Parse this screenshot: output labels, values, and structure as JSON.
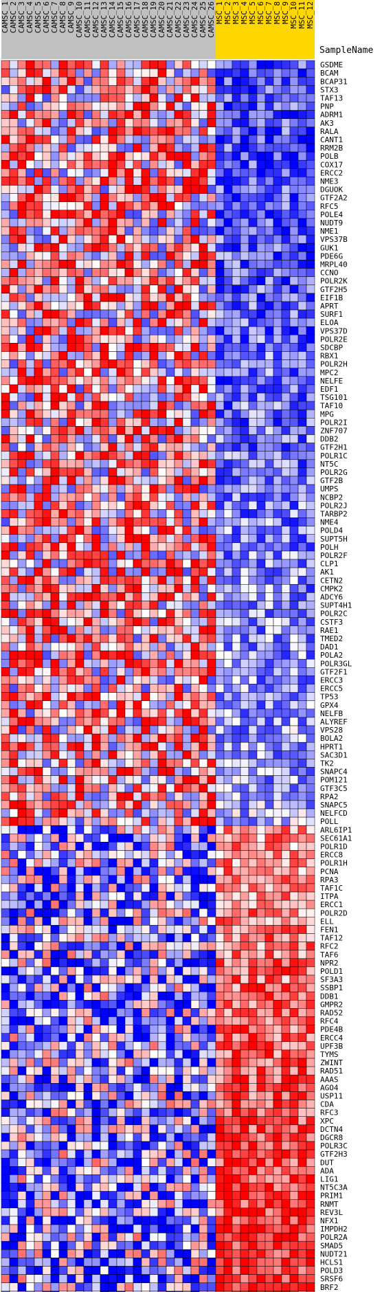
{
  "chart_data": {
    "type": "heatmap",
    "title": "",
    "row_header": "SampleName",
    "column_groups": [
      {
        "name": "CAMSC",
        "color": "#c0c0c0",
        "count": 26
      },
      {
        "name": "MSC",
        "color": "#ffd700",
        "count": 12
      }
    ],
    "columns": [
      "CAMSC_1",
      "CAMSC_2",
      "CAMSC_3",
      "CAMSC_4",
      "CAMSC_5",
      "CAMSC_6",
      "CAMSC_7",
      "CAMSC_8",
      "CAMSC_9",
      "CAMSC_10",
      "CAMSC_11",
      "CAMSC_12",
      "CAMSC_13",
      "CAMSC_14",
      "CAMSC_15",
      "CAMSC_16",
      "CAMSC_17",
      "CAMSC_18",
      "CAMSC_19",
      "CAMSC_20",
      "CAMSC_21",
      "CAMSC_22",
      "CAMSC_23",
      "CAMSC_24",
      "CAMSC_25",
      "CAMSC_26",
      "MSC_1",
      "MSC_2",
      "MSC_3",
      "MSC_4",
      "MSC_5",
      "MSC_6",
      "MSC_7",
      "MSC_8",
      "MSC_9",
      "MSC_10",
      "MSC_11",
      "MSC_12"
    ],
    "rows": [
      "GSDME",
      "BCAM",
      "BCAP31",
      "STX3",
      "TAF13",
      "PNP",
      "ADRM1",
      "AK3",
      "RALA",
      "CANT1",
      "RRM2B",
      "POLB",
      "COX17",
      "ERCC2",
      "NME3",
      "DGUOK",
      "GTF2A2",
      "RFC5",
      "POLE4",
      "NUDT9",
      "NME1",
      "VPS37B",
      "GUK1",
      "PDE6G",
      "MRPL40",
      "CCNO",
      "POLR2K",
      "GTF2H5",
      "EIF1B",
      "APRT",
      "SURF1",
      "ELOA",
      "VPS37D",
      "POLR2E",
      "SDCBP",
      "RBX1",
      "POLR2H",
      "MPC2",
      "NELFE",
      "EDF1",
      "TSG101",
      "TAF10",
      "MPG",
      "POLR2I",
      "ZNF707",
      "DDB2",
      "GTF2H1",
      "POLR1C",
      "NT5C",
      "POLR2G",
      "GTF2B",
      "UMPS",
      "NCBP2",
      "POLR2J",
      "TARBP2",
      "NME4",
      "POLD4",
      "SUPT5H",
      "POLH",
      "POLR2F",
      "CLP1",
      "AK1",
      "CETN2",
      "CMPK2",
      "ADCY6",
      "SUPT4H1",
      "POLR2C",
      "CSTF3",
      "RAE1",
      "TMED2",
      "DAD1",
      "POLA2",
      "POLR3GL",
      "GTF2F1",
      "ERCC3",
      "ERCC5",
      "TP53",
      "GPX4",
      "NELFB",
      "ALYREF",
      "VPS28",
      "BOLA2",
      "HPRT1",
      "SAC3D1",
      "TK2",
      "SNAPC4",
      "POM121",
      "GTF3C5",
      "RPA2",
      "SNAPC5",
      "NELFCD",
      "POLL",
      "ARL6IP1",
      "SEC61A1",
      "POLR1D",
      "ERCC8",
      "POLR1H",
      "PCNA",
      "RPA3",
      "TAF1C",
      "ITPA",
      "ERCC1",
      "POLR2D",
      "ELL",
      "FEN1",
      "TAF12",
      "RFC2",
      "TAF6",
      "NPR2",
      "POLD1",
      "SF3A3",
      "SSBP1",
      "DDB1",
      "GMPR2",
      "RAD52",
      "RFC4",
      "PDE4B",
      "ERCC4",
      "UPF3B",
      "TYMS",
      "ZWINT",
      "RAD51",
      "AAAS",
      "AGO4",
      "USP11",
      "CDA",
      "RFC3",
      "XPC",
      "DCTN4",
      "DGCR8",
      "POLR3C",
      "GTF2H3",
      "DUT",
      "ADA",
      "LIG1",
      "NT5C3A",
      "PRIM1",
      "RNMT",
      "REV3L",
      "NFX1",
      "IMPDH2",
      "POLR2A",
      "SMAD5",
      "NUDT21",
      "HCLS1",
      "POLD3",
      "SRSF6",
      "BRF2",
      "POLA1"
    ],
    "color_scale": {
      "low": "#0000ff",
      "mid": "#ffffff",
      "high": "#ff0000",
      "range": [
        -1,
        1
      ]
    },
    "grid": true
  }
}
